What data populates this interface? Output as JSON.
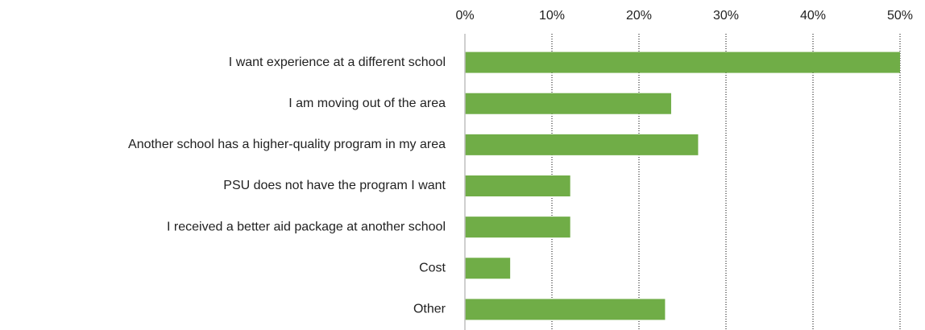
{
  "chart_data": {
    "type": "bar",
    "orientation": "horizontal",
    "categories": [
      "I want experience at a different school",
      "I am moving out of the area",
      "Another school has a higher-quality program in my area",
      "PSU does not have the program I want",
      "I received a better aid package at another school",
      "Cost",
      "Other"
    ],
    "values": [
      50,
      23.7,
      26.8,
      12.1,
      12.1,
      5.2,
      23
    ],
    "color": "#70ad47",
    "xlim": [
      0,
      50
    ],
    "xticks": [
      {
        "value": 0,
        "label": "0%"
      },
      {
        "value": 10,
        "label": "10%"
      },
      {
        "value": 20,
        "label": "20%"
      },
      {
        "value": 30,
        "label": "30%"
      },
      {
        "value": 40,
        "label": "40%"
      },
      {
        "value": 50,
        "label": "50%"
      }
    ],
    "grid": true
  }
}
